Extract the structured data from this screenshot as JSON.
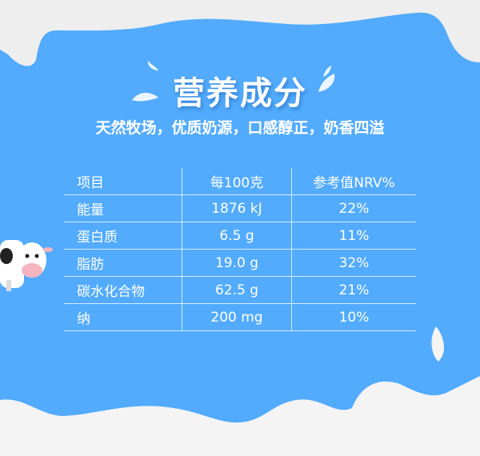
{
  "title": "营养成分",
  "subtitle": "天然牧场，优质奶源，口感醇正，奶香四溢",
  "table": {
    "headers": [
      "项目",
      "每100克",
      "参考值NRV%"
    ],
    "rows": [
      [
        "能量",
        "1876 kJ",
        "22%"
      ],
      [
        "蛋白质",
        "6.5 g",
        "11%"
      ],
      [
        "脂肪",
        "19.0 g",
        "32%"
      ],
      [
        "碳水化合物",
        "62.5 g",
        "21%"
      ],
      [
        "纳",
        "200 mg",
        "10%"
      ]
    ]
  },
  "colors": {
    "background": "#52abfc",
    "milk": "#f2f2f2"
  }
}
